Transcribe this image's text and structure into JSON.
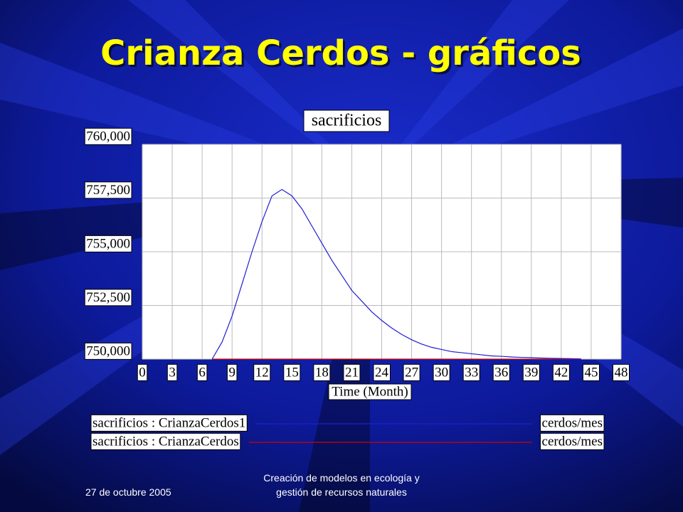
{
  "title": "Crianza Cerdos - gráficos",
  "chart_data": {
    "type": "line",
    "title": "sacrificios",
    "x_label": "Time (Month)",
    "x": [
      7,
      8,
      9,
      10,
      11,
      12,
      13,
      14,
      15,
      16,
      17,
      18,
      19,
      20,
      21,
      22,
      23,
      24,
      25,
      26,
      27,
      28,
      29,
      30,
      31,
      32,
      33,
      34,
      35,
      36,
      37,
      38,
      39,
      40,
      41,
      42,
      43,
      44
    ],
    "series": [
      {
        "name": "sacrificios : CrianzaCerdos1",
        "units": "cerdos/mes",
        "color": "#1f1fd0",
        "values": [
          750000,
          750800,
          752000,
          753500,
          755000,
          756400,
          757600,
          757900,
          757600,
          757000,
          756200,
          755400,
          754600,
          753900,
          753200,
          752700,
          752200,
          751800,
          751450,
          751150,
          750900,
          750700,
          750550,
          750450,
          750350,
          750300,
          750250,
          750200,
          750150,
          750130,
          750100,
          750080,
          750070,
          750050,
          750040,
          750030,
          750020,
          750010
        ]
      },
      {
        "name": "sacrificios : CrianzaCerdos",
        "units": "cerdos/mes",
        "color": "#d00000",
        "values": [
          750000,
          750000,
          750000,
          750000,
          750000,
          750000,
          750000,
          750000,
          750000,
          750000,
          750000,
          750000,
          750000,
          750000,
          750000,
          750000,
          750000,
          750000,
          750000,
          750000,
          750000,
          750000,
          750000,
          750000,
          750000,
          750000,
          750000,
          750000,
          750000,
          750000,
          750000,
          750000,
          750000,
          750000,
          750000,
          750000,
          750000,
          750000
        ]
      }
    ],
    "xlim": [
      0,
      48
    ],
    "xticks": [
      0,
      3,
      6,
      9,
      12,
      15,
      18,
      21,
      24,
      27,
      30,
      33,
      36,
      39,
      42,
      45,
      48
    ],
    "ylim": [
      750000,
      760000
    ],
    "yticks": [
      {
        "value": 750000,
        "label": "750,000"
      },
      {
        "value": 752500,
        "label": "752,500"
      },
      {
        "value": 755000,
        "label": "755,000"
      },
      {
        "value": 757500,
        "label": "757,500"
      },
      {
        "value": 760000,
        "label": "760,000"
      }
    ],
    "grid": true
  },
  "footer": {
    "date": "27 de octubre 2005",
    "center": [
      "Creación de modelos en ecología y",
      "gestión de recursos naturales"
    ]
  }
}
